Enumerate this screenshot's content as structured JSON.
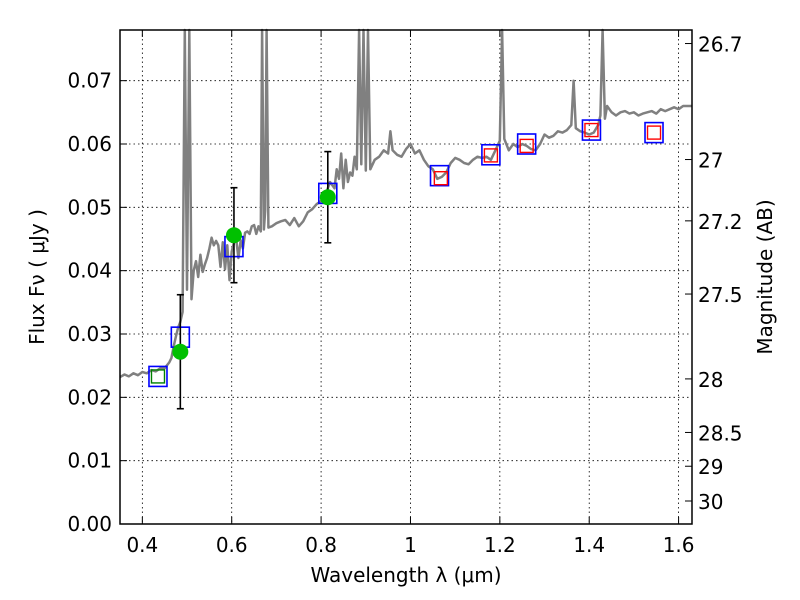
{
  "chart_data": {
    "type": "scatter",
    "xlabel": "Wavelength  λ (μm)",
    "ylabel": "Flux  Fν  ( μJy )",
    "ylabel_right": "Magnitude (AB)",
    "xlim": [
      0.35,
      1.63
    ],
    "ylim": [
      0.0,
      0.078
    ],
    "grid": true,
    "x_ticks": [
      {
        "value": 0.4,
        "label": "0.4"
      },
      {
        "value": 0.6,
        "label": "0.6"
      },
      {
        "value": 0.8,
        "label": "0.8"
      },
      {
        "value": 1.0,
        "label": "1"
      },
      {
        "value": 1.2,
        "label": "1.2"
      },
      {
        "value": 1.4,
        "label": "1.4"
      },
      {
        "value": 1.6,
        "label": "1.6"
      }
    ],
    "y_ticks": [
      {
        "value": 0.0,
        "label": "0.00"
      },
      {
        "value": 0.01,
        "label": "0.01"
      },
      {
        "value": 0.02,
        "label": "0.02"
      },
      {
        "value": 0.03,
        "label": "0.03"
      },
      {
        "value": 0.04,
        "label": "0.04"
      },
      {
        "value": 0.05,
        "label": "0.05"
      },
      {
        "value": 0.06,
        "label": "0.06"
      },
      {
        "value": 0.07,
        "label": "0.07"
      }
    ],
    "mag_ticks": [
      {
        "value": 26.7,
        "label": "26.7"
      },
      {
        "value": 27.0,
        "label": "27"
      },
      {
        "value": 27.2,
        "label": "27.2"
      },
      {
        "value": 27.5,
        "label": "27.5"
      },
      {
        "value": 28.0,
        "label": "28"
      },
      {
        "value": 28.5,
        "label": "28.5"
      },
      {
        "value": 29.0,
        "label": "29"
      },
      {
        "value": 30.0,
        "label": "30"
      }
    ],
    "series": [
      {
        "type": "line",
        "color": "#808080",
        "points": [
          [
            0.35,
            0.0232
          ],
          [
            0.36,
            0.0236
          ],
          [
            0.37,
            0.0233
          ],
          [
            0.38,
            0.0238
          ],
          [
            0.39,
            0.0235
          ],
          [
            0.4,
            0.024
          ],
          [
            0.41,
            0.0238
          ],
          [
            0.42,
            0.0243
          ],
          [
            0.43,
            0.0241
          ],
          [
            0.44,
            0.0246
          ],
          [
            0.45,
            0.0246
          ],
          [
            0.46,
            0.0255
          ],
          [
            0.465,
            0.0262
          ],
          [
            0.47,
            0.028
          ],
          [
            0.475,
            0.0296
          ],
          [
            0.48,
            0.031
          ],
          [
            0.485,
            0.0319
          ],
          [
            0.49,
            0.0335
          ],
          [
            0.495,
            0.078
          ],
          [
            0.5,
            0.037
          ],
          [
            0.505,
            0.078
          ],
          [
            0.51,
            0.0355
          ],
          [
            0.515,
            0.04
          ],
          [
            0.52,
            0.0415
          ],
          [
            0.525,
            0.039
          ],
          [
            0.53,
            0.0425
          ],
          [
            0.535,
            0.0398
          ],
          [
            0.54,
            0.041
          ],
          [
            0.545,
            0.042
          ],
          [
            0.55,
            0.0435
          ],
          [
            0.555,
            0.0452
          ],
          [
            0.56,
            0.044
          ],
          [
            0.565,
            0.0447
          ],
          [
            0.57,
            0.044
          ],
          [
            0.575,
            0.0406
          ],
          [
            0.58,
            0.0445
          ],
          [
            0.585,
            0.0402
          ],
          [
            0.59,
            0.044
          ],
          [
            0.595,
            0.0385
          ],
          [
            0.6,
            0.043
          ],
          [
            0.605,
            0.0445
          ],
          [
            0.61,
            0.045
          ],
          [
            0.615,
            0.042
          ],
          [
            0.62,
            0.0448
          ],
          [
            0.625,
            0.0435
          ],
          [
            0.63,
            0.046
          ],
          [
            0.635,
            0.0462
          ],
          [
            0.64,
            0.0458
          ],
          [
            0.645,
            0.047
          ],
          [
            0.65,
            0.0472
          ],
          [
            0.655,
            0.0458
          ],
          [
            0.66,
            0.047
          ],
          [
            0.665,
            0.0462
          ],
          [
            0.668,
            0.078
          ],
          [
            0.672,
            0.0465
          ],
          [
            0.675,
            0.0495
          ],
          [
            0.678,
            0.078
          ],
          [
            0.682,
            0.0468
          ],
          [
            0.69,
            0.047
          ],
          [
            0.7,
            0.0475
          ],
          [
            0.71,
            0.0478
          ],
          [
            0.72,
            0.048
          ],
          [
            0.73,
            0.0472
          ],
          [
            0.74,
            0.0483
          ],
          [
            0.75,
            0.047
          ],
          [
            0.76,
            0.0478
          ],
          [
            0.77,
            0.0492
          ],
          [
            0.78,
            0.0497
          ],
          [
            0.79,
            0.0505
          ],
          [
            0.8,
            0.051
          ],
          [
            0.81,
            0.052
          ],
          [
            0.82,
            0.054
          ],
          [
            0.83,
            0.053
          ],
          [
            0.835,
            0.056
          ],
          [
            0.84,
            0.0545
          ],
          [
            0.845,
            0.0585
          ],
          [
            0.85,
            0.053
          ],
          [
            0.855,
            0.0575
          ],
          [
            0.86,
            0.054
          ],
          [
            0.865,
            0.0555
          ],
          [
            0.87,
            0.055
          ],
          [
            0.875,
            0.058
          ],
          [
            0.88,
            0.056
          ],
          [
            0.885,
            0.078
          ],
          [
            0.89,
            0.0568
          ],
          [
            0.895,
            0.078
          ],
          [
            0.9,
            0.0558
          ],
          [
            0.905,
            0.078
          ],
          [
            0.91,
            0.056
          ],
          [
            0.92,
            0.0575
          ],
          [
            0.93,
            0.058
          ],
          [
            0.94,
            0.059
          ],
          [
            0.95,
            0.0585
          ],
          [
            0.955,
            0.062
          ],
          [
            0.96,
            0.059
          ],
          [
            0.97,
            0.0583
          ],
          [
            0.98,
            0.058
          ],
          [
            0.99,
            0.0592
          ],
          [
            1.0,
            0.06
          ],
          [
            1.01,
            0.0585
          ],
          [
            1.02,
            0.059
          ],
          [
            1.03,
            0.0575
          ],
          [
            1.04,
            0.0565
          ],
          [
            1.05,
            0.056
          ],
          [
            1.06,
            0.0545
          ],
          [
            1.07,
            0.0548
          ],
          [
            1.08,
            0.0555
          ],
          [
            1.09,
            0.057
          ],
          [
            1.1,
            0.0578
          ],
          [
            1.11,
            0.0575
          ],
          [
            1.12,
            0.057
          ],
          [
            1.13,
            0.0568
          ],
          [
            1.14,
            0.0575
          ],
          [
            1.15,
            0.058
          ],
          [
            1.16,
            0.0578
          ],
          [
            1.17,
            0.058
          ],
          [
            1.18,
            0.0575
          ],
          [
            1.19,
            0.059
          ],
          [
            1.2,
            0.0605
          ],
          [
            1.205,
            0.078
          ],
          [
            1.21,
            0.0608
          ],
          [
            1.22,
            0.059
          ],
          [
            1.23,
            0.06
          ],
          [
            1.24,
            0.0595
          ],
          [
            1.25,
            0.06
          ],
          [
            1.26,
            0.0597
          ],
          [
            1.27,
            0.0592
          ],
          [
            1.28,
            0.059
          ],
          [
            1.29,
            0.06
          ],
          [
            1.3,
            0.0615
          ],
          [
            1.31,
            0.061
          ],
          [
            1.32,
            0.0613
          ],
          [
            1.33,
            0.062
          ],
          [
            1.34,
            0.0618
          ],
          [
            1.35,
            0.0622
          ],
          [
            1.36,
            0.063
          ],
          [
            1.365,
            0.07
          ],
          [
            1.37,
            0.0625
          ],
          [
            1.38,
            0.062
          ],
          [
            1.39,
            0.0618
          ],
          [
            1.4,
            0.0615
          ],
          [
            1.41,
            0.0618
          ],
          [
            1.42,
            0.063
          ],
          [
            1.425,
            0.0645
          ],
          [
            1.43,
            0.078
          ],
          [
            1.435,
            0.064
          ],
          [
            1.44,
            0.066
          ],
          [
            1.45,
            0.065
          ],
          [
            1.46,
            0.0645
          ],
          [
            1.47,
            0.065
          ],
          [
            1.48,
            0.0652
          ],
          [
            1.49,
            0.0648
          ],
          [
            1.5,
            0.065
          ],
          [
            1.51,
            0.0645
          ],
          [
            1.52,
            0.0648
          ],
          [
            1.53,
            0.065
          ],
          [
            1.54,
            0.0652
          ],
          [
            1.55,
            0.0648
          ],
          [
            1.56,
            0.0655
          ],
          [
            1.57,
            0.0652
          ],
          [
            1.58,
            0.0655
          ],
          [
            1.59,
            0.0658
          ],
          [
            1.6,
            0.0655
          ],
          [
            1.61,
            0.066
          ],
          [
            1.62,
            0.066
          ],
          [
            1.63,
            0.066
          ]
        ]
      },
      {
        "type": "model_boxes",
        "color": "#0000ff",
        "points": [
          [
            0.435,
            0.0233
          ],
          [
            0.485,
            0.0295
          ],
          [
            0.605,
            0.0438
          ],
          [
            0.815,
            0.0522
          ],
          [
            1.065,
            0.055
          ],
          [
            1.18,
            0.0583
          ],
          [
            1.26,
            0.06
          ],
          [
            1.405,
            0.0622
          ],
          [
            1.545,
            0.0618
          ]
        ]
      },
      {
        "type": "observed_boxes",
        "colors": [
          "#008000",
          "#ff0000"
        ],
        "points": [
          {
            "x": 0.435,
            "y": 0.0233,
            "color": "green"
          },
          {
            "x": 1.068,
            "y": 0.0546,
            "color": "red"
          },
          {
            "x": 1.18,
            "y": 0.0582,
            "color": "red"
          },
          {
            "x": 1.26,
            "y": 0.0597,
            "color": "red"
          },
          {
            "x": 1.405,
            "y": 0.0622,
            "color": "red"
          },
          {
            "x": 1.545,
            "y": 0.0618,
            "color": "red"
          }
        ]
      },
      {
        "type": "errorbar_points",
        "color": "#00c000",
        "points": [
          {
            "x": 0.485,
            "y": 0.0272,
            "err": 0.009
          },
          {
            "x": 0.605,
            "y": 0.0456,
            "err": 0.0075
          },
          {
            "x": 0.815,
            "y": 0.0516,
            "err": 0.0072
          }
        ]
      }
    ]
  }
}
